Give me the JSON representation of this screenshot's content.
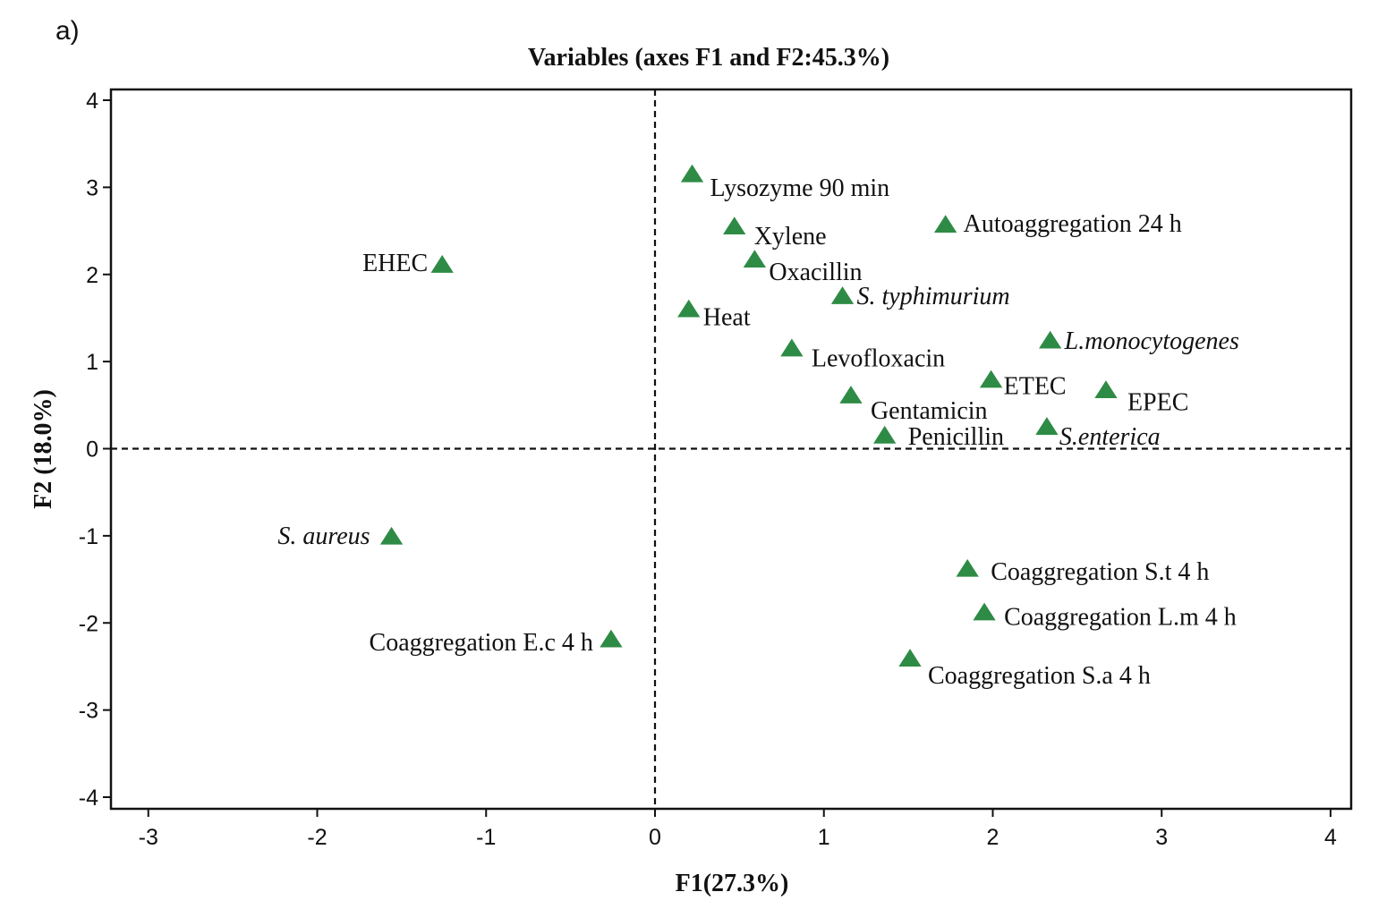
{
  "panel_label": "a)",
  "chart_data": {
    "type": "scatter",
    "title": "Variables (axes F1 and F2:45.3%)",
    "xlabel": "F1(27.3%)",
    "ylabel": "F2 (18.0%)",
    "xlim": [
      -3.2,
      4.15
    ],
    "ylim": [
      -4.15,
      4.1
    ],
    "xticks": [
      -3,
      -2,
      -1,
      0,
      1,
      2,
      3,
      4
    ],
    "yticks": [
      -4,
      -3,
      -2,
      -1,
      0,
      1,
      2,
      3,
      4
    ],
    "reference_lines": {
      "x": 0,
      "y": 0,
      "style": "dashed"
    },
    "marker": "triangle",
    "marker_color": "#2e8b45",
    "points": [
      {
        "label": "Lysozyme 90 min",
        "x": 0.22,
        "y": 3.15,
        "italic": false
      },
      {
        "label": "Xylene",
        "x": 0.47,
        "y": 2.55,
        "italic": false
      },
      {
        "label": "Autoaggregation 24 h",
        "x": 1.72,
        "y": 2.57,
        "italic": false
      },
      {
        "label": "EHEC",
        "x": -1.26,
        "y": 2.11,
        "italic": false
      },
      {
        "label": "Oxacillin",
        "x": 0.59,
        "y": 2.17,
        "italic": false
      },
      {
        "label": "S. typhimurium",
        "x": 1.11,
        "y": 1.75,
        "italic": true
      },
      {
        "label": "Heat",
        "x": 0.2,
        "y": 1.6,
        "italic": false
      },
      {
        "label": "L.monocytogenes",
        "x": 2.34,
        "y": 1.24,
        "italic": true
      },
      {
        "label": "Levofloxacin",
        "x": 0.81,
        "y": 1.15,
        "italic": false
      },
      {
        "label": "ETEC",
        "x": 1.99,
        "y": 0.79,
        "italic": false
      },
      {
        "label": "EPEC",
        "x": 2.67,
        "y": 0.67,
        "italic": false
      },
      {
        "label": "Gentamicin",
        "x": 1.16,
        "y": 0.61,
        "italic": false
      },
      {
        "label": "S.enterica",
        "x": 2.32,
        "y": 0.25,
        "italic": true
      },
      {
        "label": "Penicillin",
        "x": 1.36,
        "y": 0.15,
        "italic": false
      },
      {
        "label": "S. aureus",
        "x": -1.56,
        "y": -1.01,
        "italic": true
      },
      {
        "label": "Coaggregation S.t 4 h",
        "x": 1.85,
        "y": -1.38,
        "italic": false
      },
      {
        "label": "Coaggregation L.m 4 h",
        "x": 1.95,
        "y": -1.88,
        "italic": false
      },
      {
        "label": "Coaggregation E.c 4 h",
        "x": -0.26,
        "y": -2.19,
        "italic": false
      },
      {
        "label": "Coaggregation S.a 4 h",
        "x": 1.51,
        "y": -2.41,
        "italic": false
      }
    ]
  }
}
